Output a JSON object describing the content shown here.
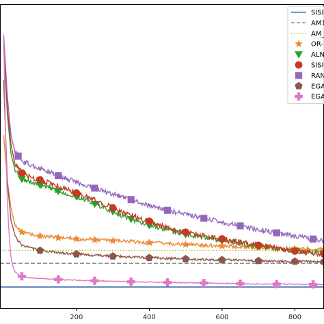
{
  "chart_data": {
    "type": "line",
    "title": "",
    "xlabel": "",
    "ylabel": "",
    "xlim": [
      -10,
      880
    ],
    "ylim": [
      0,
      100
    ],
    "xticks": [
      200,
      400,
      600,
      800
    ],
    "grid": false,
    "legend_position": "top-right",
    "series": [
      {
        "name": "SISI",
        "color": "#4c72b0",
        "style": "solid",
        "marker": "none",
        "constant": 7.0
      },
      {
        "name": "AM1",
        "color": "#7f7f7f",
        "style": "dashed",
        "marker": "none",
        "constant": 14.8
      },
      {
        "name": "AM_",
        "color": "#bcbd22",
        "style": "dotted",
        "marker": "none",
        "constant": 19.0
      },
      {
        "name": "OR-",
        "color": "#ed8936",
        "style": "solid",
        "marker": "star",
        "x": [
          0,
          10,
          20,
          30,
          40,
          50,
          75,
          100,
          150,
          200,
          250,
          300,
          400,
          500,
          600,
          700,
          800,
          880
        ],
        "y": [
          57,
          42,
          33,
          28,
          26,
          25,
          24.3,
          23.8,
          23.2,
          22.8,
          22.5,
          22.2,
          21.6,
          21.0,
          20.5,
          20.0,
          19.6,
          19.4
        ]
      },
      {
        "name": "ALN",
        "color": "#2ca02c",
        "style": "solid",
        "marker": "triangle-down",
        "x": [
          0,
          10,
          20,
          30,
          40,
          50,
          75,
          100,
          150,
          200,
          250,
          300,
          350,
          400,
          500,
          600,
          700,
          800,
          880
        ],
        "y": [
          88,
          64,
          51,
          46,
          44,
          42.5,
          41.5,
          40.5,
          38.5,
          36.7,
          34.3,
          31.8,
          29.3,
          27.3,
          24.3,
          22.3,
          20.3,
          18.8,
          18.0
        ]
      },
      {
        "name": "SISI",
        "color": "#c23b22",
        "style": "solid",
        "marker": "circle",
        "x": [
          0,
          10,
          20,
          30,
          40,
          50,
          75,
          100,
          150,
          200,
          250,
          300,
          350,
          400,
          450,
          500,
          600,
          700,
          800,
          880
        ],
        "y": [
          86,
          66,
          54,
          48,
          46,
          44.5,
          43,
          42.2,
          40.2,
          37.9,
          35.7,
          33.0,
          30.5,
          28.6,
          26.5,
          25.0,
          22.8,
          20.7,
          18.8,
          17.8
        ]
      },
      {
        "name": "RAN",
        "color": "#9467bd",
        "style": "solid",
        "marker": "square",
        "x": [
          0,
          10,
          20,
          30,
          40,
          50,
          75,
          100,
          150,
          200,
          250,
          300,
          350,
          400,
          450,
          500,
          550,
          600,
          700,
          750,
          800,
          880
        ],
        "y": [
          90,
          70,
          57,
          52,
          50,
          48.5,
          47,
          46,
          43.6,
          41.5,
          39.5,
          37.6,
          35.7,
          33.8,
          32.2,
          30.9,
          29.6,
          28.3,
          25.9,
          24.8,
          23.7,
          22.2
        ]
      },
      {
        "name": "EGA",
        "color": "#8c564b",
        "style": "solid",
        "marker": "pentagon",
        "x": [
          0,
          10,
          20,
          30,
          40,
          50,
          75,
          100,
          150,
          200,
          300,
          400,
          500,
          600,
          700,
          800,
          880
        ],
        "y": [
          75,
          42,
          29,
          24.5,
          22,
          20.8,
          19.8,
          19.0,
          18.3,
          17.8,
          17.1,
          16.6,
          16.2,
          15.9,
          15.6,
          15.4,
          15.3
        ]
      },
      {
        "name": "EGA",
        "color": "#e377c2",
        "style": "solid",
        "marker": "plus",
        "x": [
          0,
          5,
          10,
          15,
          20,
          25,
          30,
          40,
          50,
          75,
          100,
          150,
          200,
          300,
          400,
          500,
          600,
          700,
          800,
          880
        ],
        "y": [
          90,
          58,
          36,
          24,
          17,
          14,
          12.3,
          11.0,
          10.5,
          10.0,
          9.8,
          9.5,
          9.2,
          8.9,
          8.6,
          8.4,
          8.2,
          8.0,
          7.9,
          7.8
        ]
      }
    ]
  }
}
